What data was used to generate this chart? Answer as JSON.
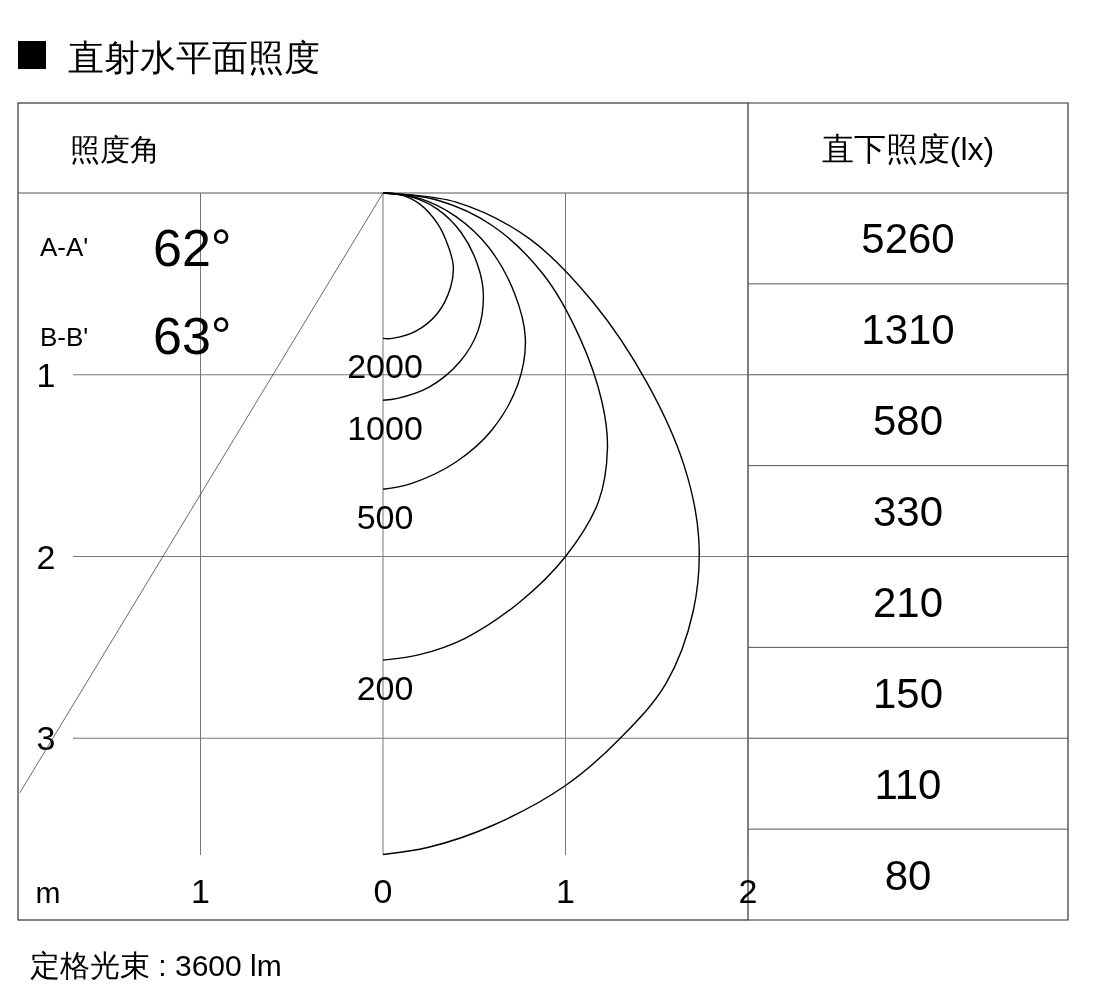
{
  "chart_data": [
    {
      "type": "line",
      "title": "直射水平面照度",
      "xlabel": "m",
      "xlim": [
        -2,
        2
      ],
      "ylim": [
        4,
        0
      ],
      "xticks": [
        {
          "value": -1,
          "label": "1"
        },
        0,
        1,
        2
      ],
      "yticks": [
        1,
        2,
        3
      ],
      "grid": true,
      "legend": false,
      "marker": "none",
      "line_style": "solid",
      "annotations": [
        "照度角",
        "A-A'",
        "62°",
        "B-B'",
        "63°",
        "定格光束 : 3600 lm"
      ],
      "series": [
        {
          "name": "2000",
          "color": "#000000",
          "x": [
            0,
            0.1,
            0.2,
            0.3,
            0.36,
            0.385,
            0.37,
            0.3,
            0.18,
            0.05,
            0
          ],
          "values": [
            0,
            0.01,
            0.06,
            0.17,
            0.3,
            0.4,
            0.52,
            0.66,
            0.76,
            0.8,
            0.8
          ]
        },
        {
          "name": "1000",
          "color": "#000000",
          "x": [
            0,
            0.15,
            0.3,
            0.43,
            0.52,
            0.55,
            0.52,
            0.42,
            0.25,
            0.08,
            0
          ],
          "values": [
            0,
            0.02,
            0.09,
            0.22,
            0.4,
            0.56,
            0.76,
            0.93,
            1.07,
            1.13,
            1.14
          ]
        },
        {
          "name": "500",
          "color": "#000000",
          "x": [
            0,
            0.2,
            0.4,
            0.58,
            0.72,
            0.78,
            0.74,
            0.6,
            0.4,
            0.15,
            0
          ],
          "values": [
            0,
            0.03,
            0.13,
            0.3,
            0.55,
            0.8,
            1.05,
            1.3,
            1.48,
            1.6,
            1.63
          ]
        },
        {
          "name": "200",
          "color": "#000000",
          "x": [
            0,
            0.3,
            0.6,
            0.88,
            1.08,
            1.2,
            1.23,
            1.18,
            1.0,
            0.75,
            0.45,
            0.2,
            0
          ],
          "values": [
            0,
            0.04,
            0.18,
            0.45,
            0.8,
            1.15,
            1.4,
            1.7,
            2.0,
            2.25,
            2.45,
            2.54,
            2.57
          ]
        },
        {
          "color": "#000000",
          "x": [
            0,
            0.4,
            0.8,
            1.15,
            1.45,
            1.65,
            1.73,
            1.7,
            1.55,
            1.3,
            1.0,
            0.6,
            0.25,
            0
          ],
          "values": [
            0,
            0.05,
            0.25,
            0.6,
            1.05,
            1.5,
            1.9,
            2.3,
            2.7,
            3.0,
            3.26,
            3.48,
            3.6,
            3.64
          ]
        },
        {
          "color": "#444444",
          "x": [
            0,
            -1.99
          ],
          "values": [
            0,
            3.3
          ]
        }
      ]
    },
    {
      "type": "other",
      "title": "直下照度(lx)",
      "values": [
        5260,
        1310,
        580,
        330,
        210,
        150,
        110,
        80
      ],
      "data_labels": true
    }
  ]
}
